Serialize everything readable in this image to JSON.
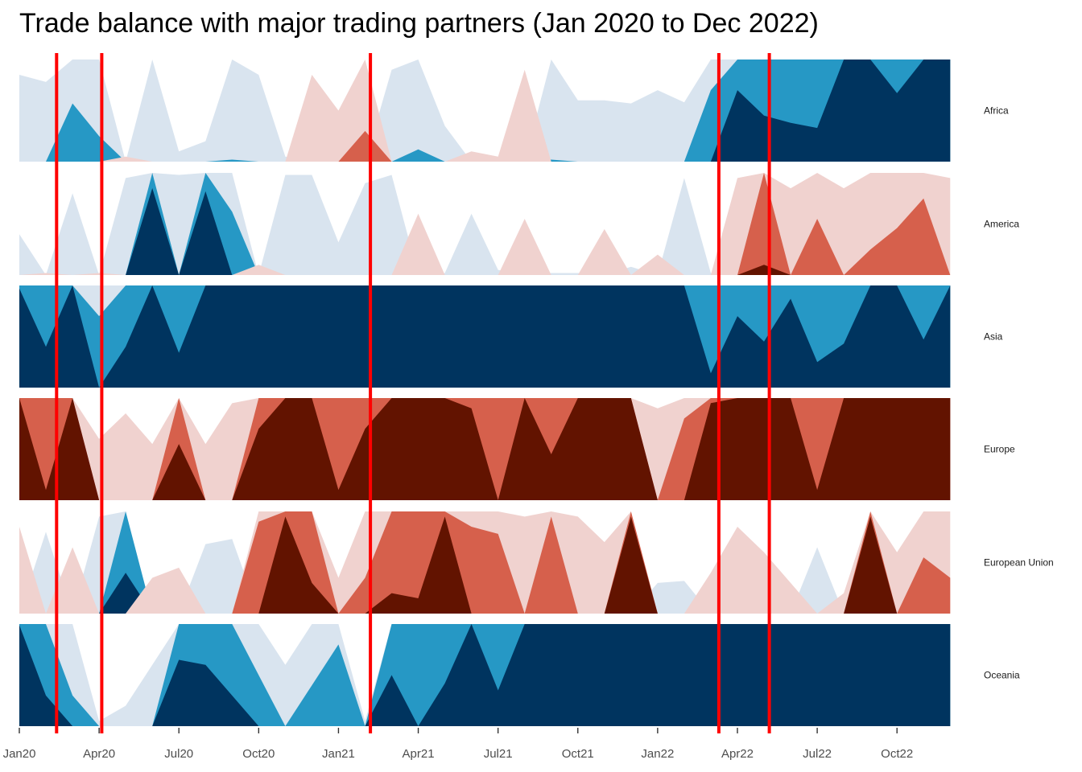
{
  "chart_data": {
    "type": "area",
    "subtype": "horizon",
    "title": "Trade balance with major trading partners (Jan 2020 to Dec 2022)",
    "xlabel": "",
    "ylabel": "",
    "x_ticks": [
      "Jan20",
      "Apr20",
      "Jul20",
      "Oct20",
      "Jan21",
      "Apr21",
      "Jul21",
      "Oct21",
      "Jan22",
      "Apr22",
      "Jul22",
      "Oct22"
    ],
    "months": [
      "Jan20",
      "Feb20",
      "Mar20",
      "Apr20",
      "May20",
      "Jun20",
      "Jul20",
      "Aug20",
      "Sep20",
      "Oct20",
      "Nov20",
      "Dec20",
      "Jan21",
      "Feb21",
      "Mar21",
      "Apr21",
      "May21",
      "Jun21",
      "Jul21",
      "Aug21",
      "Sep21",
      "Oct21",
      "Nov21",
      "Dec21",
      "Jan22",
      "Feb22",
      "Mar22",
      "Apr22",
      "May22",
      "Jun22",
      "Jul22",
      "Aug22",
      "Sep22",
      "Oct22",
      "Nov22",
      "Dec22"
    ],
    "band_colors": {
      "positive": [
        "#d9e4ef",
        "#2698c5",
        "#00345f"
      ],
      "negative": [
        "#f0d2cf",
        "#d6604c",
        "#621300"
      ]
    },
    "vlines": {
      "color": "#ff0000",
      "x": [
        "Mar 2020",
        "Apr 2020",
        "Feb 2021",
        "Mar 2022",
        "May 2022"
      ]
    },
    "series": [
      {
        "name": "Africa",
        "values": [
          0.85,
          0.78,
          1.57,
          1.25,
          -0.05,
          1.0,
          0.1,
          0.2,
          1.02,
          0.85,
          0.05,
          -0.85,
          -0.5,
          -1.3,
          0.9,
          1.12,
          0.35,
          -0.1,
          -0.05,
          -0.9,
          1.02,
          0.6,
          0.6,
          0.57,
          0.7,
          0.58,
          1.7,
          2.7,
          2.45,
          2.38,
          2.33,
          3.0,
          3.0,
          2.67,
          3.0,
          3.0
        ]
      },
      {
        "name": "America",
        "values": [
          0.4,
          -0.02,
          0.8,
          -0.02,
          0.95,
          2.85,
          0.98,
          2.82,
          1.62,
          -0.1,
          0.98,
          0.98,
          0.32,
          0.9,
          0.98,
          -0.6,
          0.02,
          0.6,
          0.05,
          -0.55,
          0.02,
          0.02,
          -0.45,
          0.08,
          -0.2,
          0.95,
          0.02,
          -0.95,
          -2.1,
          -0.85,
          -1.55,
          -0.85,
          -1.25,
          -1.46,
          -1.75,
          -0.95
        ]
      },
      {
        "name": "Asia",
        "values": [
          2.97,
          2.4,
          3.0,
          1.7,
          2.4,
          3.0,
          2.34,
          3.0,
          3.0,
          3.0,
          3.0,
          3.0,
          3.0,
          3.0,
          3.0,
          3.0,
          3.0,
          3.0,
          3.0,
          3.0,
          3.0,
          3.0,
          3.0,
          3.0,
          3.0,
          3.0,
          2.14,
          2.7,
          2.45,
          2.87,
          2.25,
          2.43,
          3.0,
          3.0,
          2.47,
          3.0
        ]
      },
      {
        "name": "Europe",
        "values": [
          -3.0,
          -2.1,
          -3.0,
          -0.6,
          -0.85,
          -0.55,
          -2.55,
          -0.55,
          -0.95,
          -2.7,
          -3.0,
          -3.0,
          -2.1,
          -2.7,
          -3.0,
          -3.0,
          -3.0,
          -2.9,
          -2.0,
          -3.0,
          -2.45,
          -3.0,
          -3.0,
          -3.0,
          -0.9,
          -1.8,
          -2.95,
          -3.0,
          -3.0,
          -3.0,
          -2.1,
          -3.0,
          -3.0,
          -3.0,
          -3.0,
          -3.0
        ]
      },
      {
        "name": "European Union",
        "values": [
          -0.85,
          0.8,
          -0.65,
          0.95,
          2.4,
          -0.35,
          -0.45,
          0.68,
          0.73,
          -1.9,
          -2.95,
          -2.3,
          -0.35,
          -1.35,
          -2.2,
          -2.15,
          -2.95,
          -1.85,
          -1.78,
          -0.95,
          -1.95,
          -0.95,
          -0.7,
          -2.95,
          0.3,
          0.32,
          -0.4,
          -0.85,
          -0.6,
          -0.3,
          0.65,
          -0.2,
          -2.95,
          -0.6,
          -1.55,
          -1.35
        ]
      },
      {
        "name": "Oceania",
        "values": [
          2.99,
          2.3,
          1.3,
          0.05,
          0.2,
          0.6,
          2.65,
          2.6,
          2.3,
          1.5,
          0.6,
          1.4,
          1.8,
          0.05,
          2.5,
          2.0,
          2.42,
          3.0,
          2.35,
          3.0,
          3.0,
          3.0,
          3.0,
          3.0,
          3.0,
          3.0,
          3.0,
          3.0,
          3.0,
          3.0,
          3.0,
          3.0,
          3.0,
          3.0,
          3.0,
          3.0
        ]
      }
    ]
  }
}
